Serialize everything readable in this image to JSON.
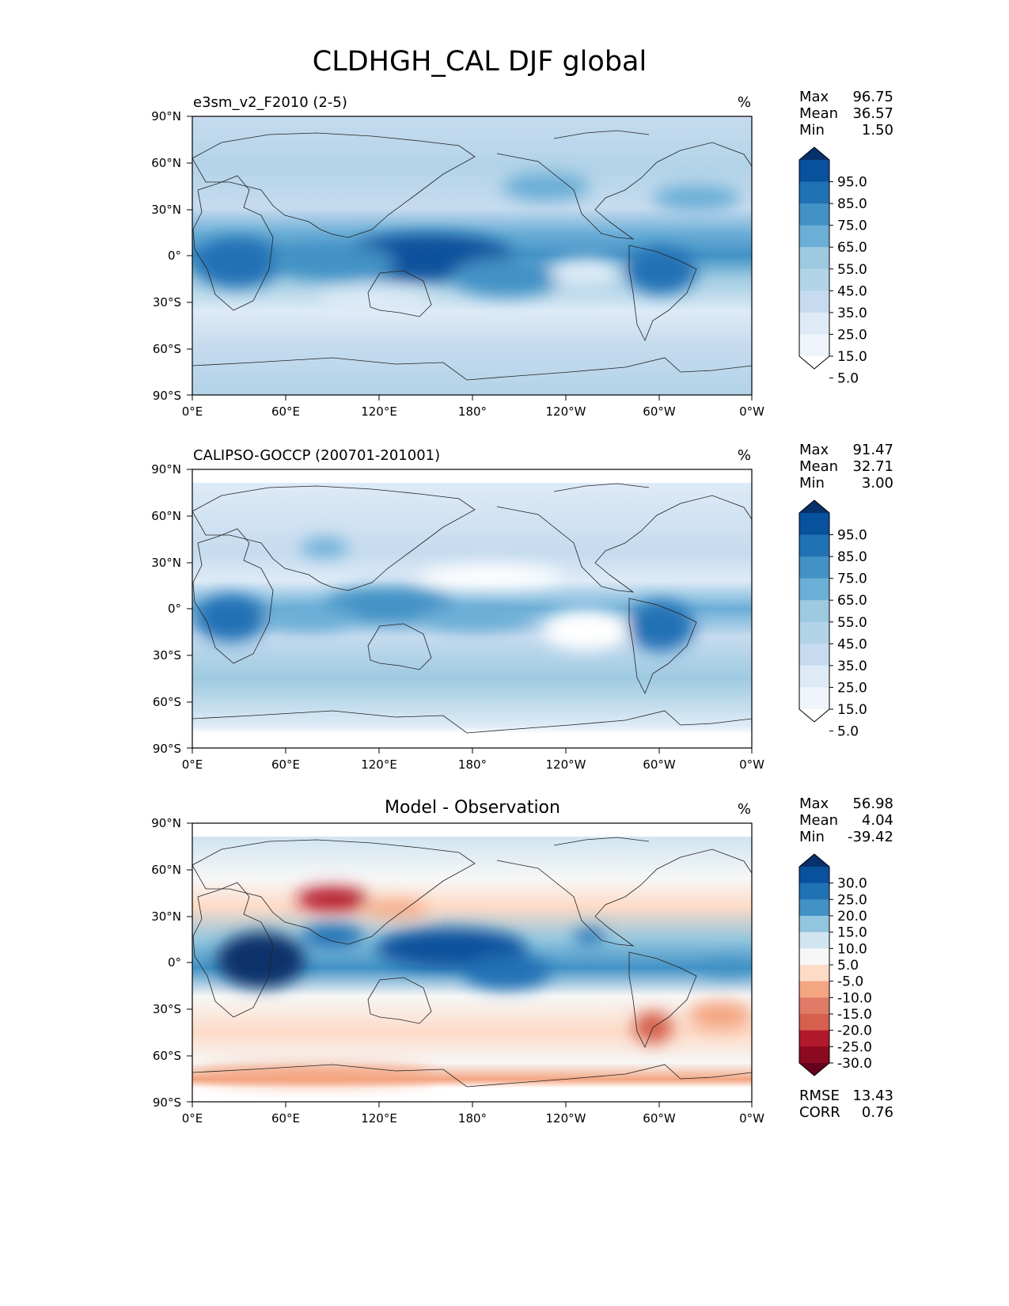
{
  "title": "CLDHGH_CAL DJF global",
  "lat_labels": [
    "90°N",
    "60°N",
    "30°N",
    "0°",
    "30°S",
    "60°S",
    "90°S"
  ],
  "lon_labels": [
    "0°E",
    "60°E",
    "120°E",
    "180°",
    "120°W",
    "60°W",
    "0°W"
  ],
  "panels": [
    {
      "id": "model",
      "title": "e3sm_v2_F2010 (2-5)",
      "unit": "%",
      "stats": [
        {
          "label": "Max",
          "value": "96.75"
        },
        {
          "label": "Mean",
          "value": "36.57"
        },
        {
          "label": "Min",
          "value": "1.50"
        }
      ],
      "colorbar_labels": [
        "95.0",
        "85.0",
        "75.0",
        "65.0",
        "55.0",
        "45.0",
        "35.0",
        "25.0",
        "15.0",
        "5.0"
      ],
      "colorbar_colors": [
        "#08306b",
        "#08519c",
        "#2171b5",
        "#4292c6",
        "#6baed6",
        "#9ecae1",
        "#b3d3e8",
        "#c6dbef",
        "#deebf7",
        "#eff5fb",
        "#ffffff"
      ]
    },
    {
      "id": "obs",
      "title": "CALIPSO-GOCCP (200701-201001)",
      "unit": "%",
      "stats": [
        {
          "label": "Max",
          "value": "91.47"
        },
        {
          "label": "Mean",
          "value": "32.71"
        },
        {
          "label": "Min",
          "value": "3.00"
        }
      ],
      "colorbar_labels": [
        "95.0",
        "85.0",
        "75.0",
        "65.0",
        "55.0",
        "45.0",
        "35.0",
        "25.0",
        "15.0",
        "5.0"
      ],
      "colorbar_colors": [
        "#08306b",
        "#08519c",
        "#2171b5",
        "#4292c6",
        "#6baed6",
        "#9ecae1",
        "#b3d3e8",
        "#c6dbef",
        "#deebf7",
        "#eff5fb",
        "#ffffff"
      ]
    },
    {
      "id": "diff",
      "title": "Model - Observation",
      "unit": "%",
      "stats": [
        {
          "label": "Max",
          "value": "56.98"
        },
        {
          "label": "Mean",
          "value": "4.04"
        },
        {
          "label": "Min",
          "value": "-39.42"
        }
      ],
      "colorbar_labels": [
        "30.0",
        "25.0",
        "20.0",
        "15.0",
        "10.0",
        "5.0",
        "-5.0",
        "-10.0",
        "-15.0",
        "-20.0",
        "-25.0",
        "-30.0"
      ],
      "colorbar_colors": [
        "#08306b",
        "#08519c",
        "#2171b5",
        "#4292c6",
        "#92c5de",
        "#d1e5f0",
        "#f7f7f7",
        "#fddbc7",
        "#f4a582",
        "#e07b68",
        "#d6604d",
        "#b2182b",
        "#8b0a1f",
        "#67001f"
      ],
      "metrics": [
        {
          "label": "RMSE",
          "value": "13.43"
        },
        {
          "label": "CORR",
          "value": "0.76"
        }
      ]
    }
  ]
}
